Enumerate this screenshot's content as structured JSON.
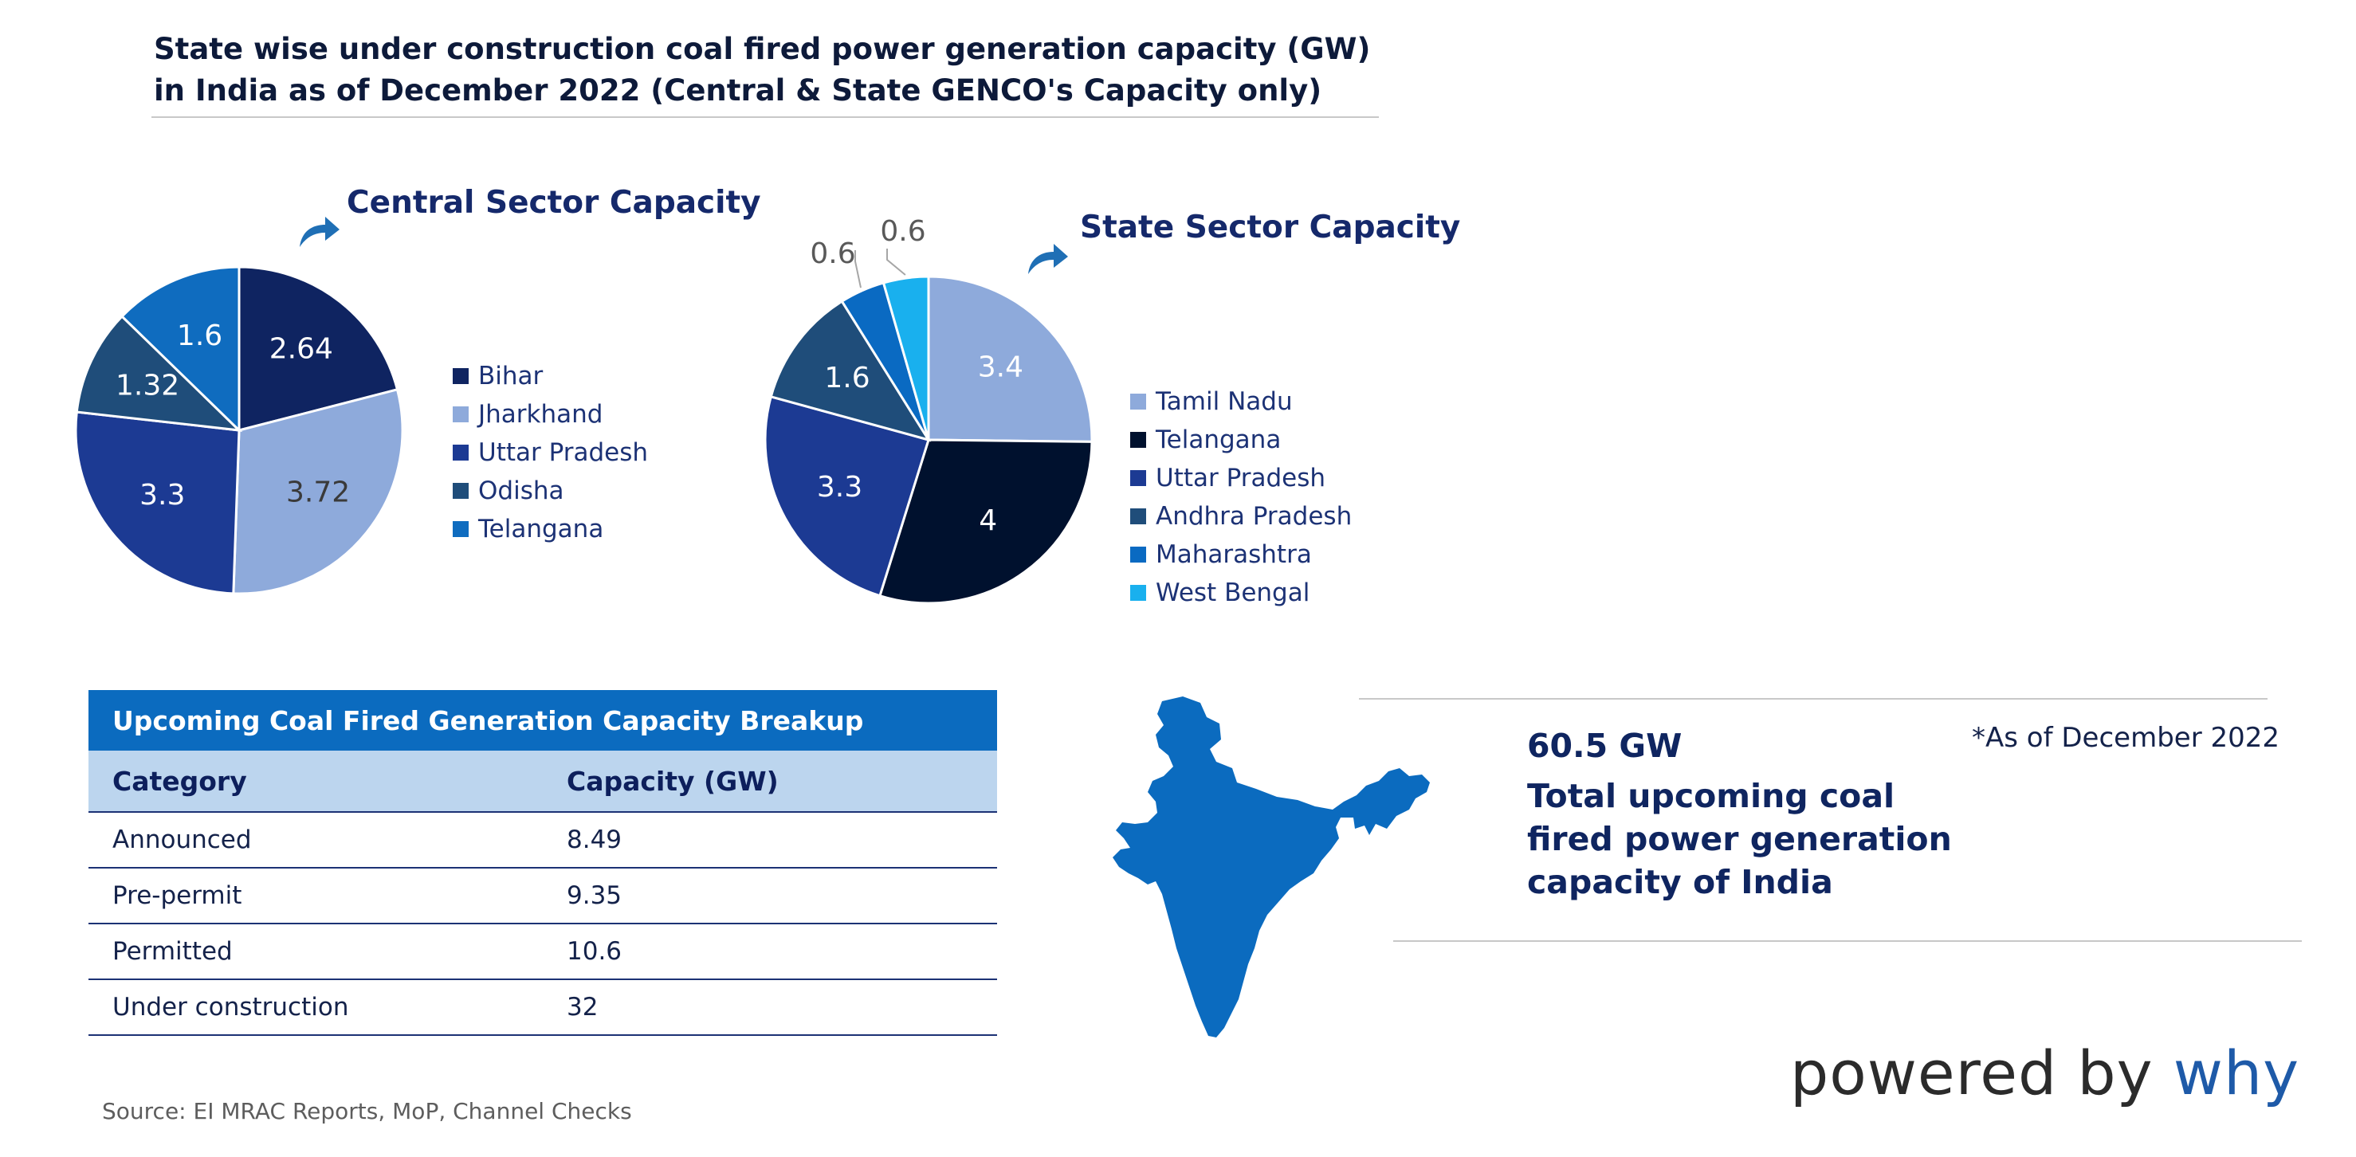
{
  "page": {
    "title": "State wise under construction coal fired power generation capacity (GW) in India as of December 2022 (Central & State GENCO's Capacity only)",
    "source": "Source: EI MRAC Reports, MoP, Channel Checks",
    "as_of_note": "*As of December 2022",
    "powered_by": "powered by",
    "brand": "why"
  },
  "summary": {
    "value": "60.5 GW",
    "lines": [
      "Total upcoming coal",
      "fired power generation",
      "capacity of India"
    ]
  },
  "icons": {
    "title_arrow": "curved-arrow-icon",
    "map": "india-map-icon"
  },
  "colors": {
    "Bihar": "#0f2461",
    "Jharkhand": "#8eaadb",
    "Uttar Pradesh": "#1c3a93",
    "Odisha": "#1f4d7a",
    "Telangana_central": "#0f6cbf",
    "Tamil Nadu": "#8eaadb",
    "Telangana_state": "#00112e",
    "Andhra Pradesh": "#1f4d7a",
    "Maharashtra": "#0a6ac2",
    "West Bengal": "#19b0ee",
    "table_header": "#0b6bbf",
    "table_subheader": "#bcd5ee",
    "map": "#0b6bbf"
  },
  "chart_data": [
    {
      "type": "pie",
      "title": "Central Sector Capacity",
      "legend_position": "right",
      "slices": [
        {
          "label": "Bihar",
          "value": 2.64,
          "value_text": "2.64",
          "color": "#0f2461",
          "text_color": "#ffffff"
        },
        {
          "label": "Jharkhand",
          "value": 3.72,
          "value_text": "3.72",
          "color": "#8eaadb",
          "text_color": "#3a3a3a"
        },
        {
          "label": "Uttar Pradesh",
          "value": 3.3,
          "value_text": "3.3",
          "color": "#1c3a93",
          "text_color": "#ffffff"
        },
        {
          "label": "Odisha",
          "value": 1.32,
          "value_text": "1.32",
          "color": "#1f4d7a",
          "text_color": "#ffffff"
        },
        {
          "label": "Telangana",
          "value": 1.6,
          "value_text": "1.6",
          "color": "#0f6cbf",
          "text_color": "#ffffff"
        }
      ]
    },
    {
      "type": "pie",
      "title": "State Sector Capacity",
      "legend_position": "right",
      "slices": [
        {
          "label": "Tamil Nadu",
          "value": 3.4,
          "value_text": "3.4",
          "color": "#8eaadb",
          "text_color": "#ffffff"
        },
        {
          "label": "Telangana",
          "value": 4,
          "value_text": "4",
          "color": "#00112e",
          "text_color": "#ffffff"
        },
        {
          "label": "Uttar Pradesh",
          "value": 3.3,
          "value_text": "3.3",
          "color": "#1c3a93",
          "text_color": "#ffffff"
        },
        {
          "label": "Andhra Pradesh",
          "value": 1.6,
          "value_text": "1.6",
          "color": "#1f4d7a",
          "text_color": "#ffffff"
        },
        {
          "label": "Maharashtra",
          "value": 0.6,
          "value_text": "0.6",
          "color": "#0a6ac2",
          "text_color": "#595959"
        },
        {
          "label": "West Bengal",
          "value": 0.6,
          "value_text": "0.6",
          "color": "#19b0ee",
          "text_color": "#595959"
        }
      ]
    },
    {
      "type": "table",
      "title": "Upcoming Coal Fired Generation Capacity Breakup",
      "columns": [
        "Category",
        "Capacity (GW)"
      ],
      "rows": [
        [
          "Announced",
          "8.49"
        ],
        [
          "Pre-permit",
          "9.35"
        ],
        [
          "Permitted",
          "10.6"
        ],
        [
          "Under construction",
          "32"
        ]
      ]
    }
  ]
}
